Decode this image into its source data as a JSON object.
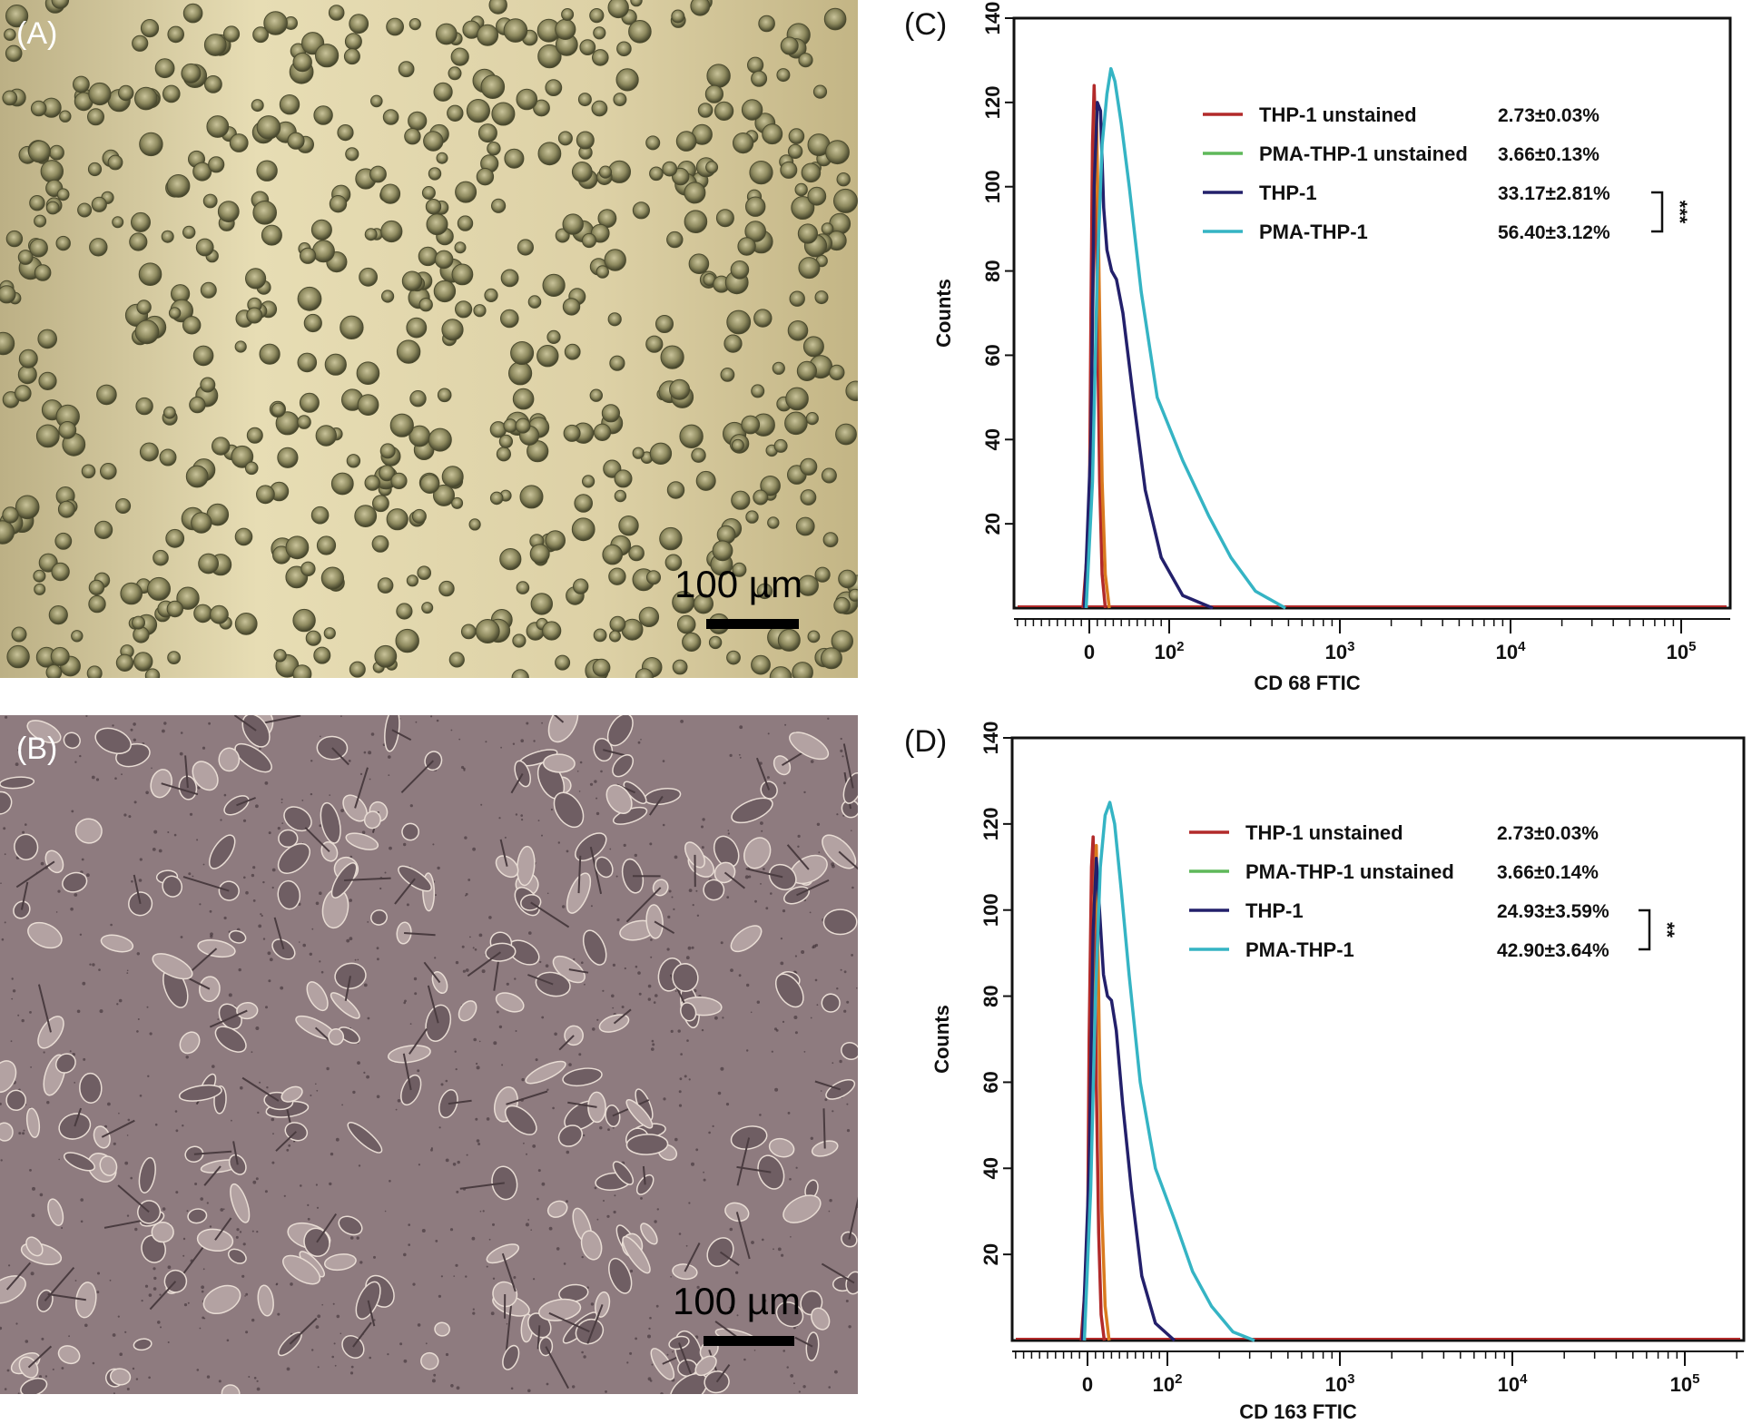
{
  "panels": {
    "A": {
      "label": "(A)",
      "scale_label": "100 µm"
    },
    "B": {
      "label": "(B)",
      "scale_label": "100 µm"
    },
    "C": {
      "label": "(C)"
    },
    "D": {
      "label": "(D)"
    }
  },
  "colors": {
    "thp1_unstained": "#b22a2a",
    "pma_thp1_unstained": "#5fb85a",
    "thp1": "#23206b",
    "pma_thp1": "#35b4c4",
    "orange_peak": "#d97a1e"
  },
  "chart_data": [
    {
      "id": "C",
      "type": "line",
      "xlabel": "CD 68    FTIC",
      "ylabel": "Counts",
      "ylim": [
        0,
        140
      ],
      "yticks": [
        20,
        40,
        60,
        80,
        100,
        120,
        140
      ],
      "xscale": "biexponential",
      "xticks": [
        {
          "value": 0,
          "label": "0",
          "exp": ""
        },
        {
          "value": 100,
          "label": "10",
          "exp": "2"
        },
        {
          "value": 1000,
          "label": "10",
          "exp": "3"
        },
        {
          "value": 10000,
          "label": "10",
          "exp": "4"
        },
        {
          "value": 100000,
          "label": "10",
          "exp": "5"
        }
      ],
      "legend": [
        {
          "name": "THP-1 unstained",
          "value": "2.73±0.03%",
          "color_key": "thp1_unstained"
        },
        {
          "name": "PMA-THP-1 unstained",
          "value": "3.66±0.13%",
          "color_key": "pma_thp1_unstained"
        },
        {
          "name": "THP-1",
          "value": "33.17±2.81%",
          "color_key": "thp1"
        },
        {
          "name": "PMA-THP-1",
          "value": "56.40±3.12%",
          "color_key": "pma_thp1"
        }
      ],
      "significance": "***",
      "series": [
        {
          "name": "THP-1 unstained",
          "color_key": "thp1_unstained",
          "points": [
            [
              -8,
              0
            ],
            [
              0,
              20
            ],
            [
              2,
              70
            ],
            [
              4,
              110
            ],
            [
              6,
              124
            ],
            [
              8,
              110
            ],
            [
              10,
              70
            ],
            [
              13,
              30
            ],
            [
              16,
              8
            ],
            [
              20,
              0
            ]
          ]
        },
        {
          "name": "PMA-THP-1 unstained",
          "color_key": "orange_peak",
          "points": [
            [
              -4,
              0
            ],
            [
              2,
              40
            ],
            [
              6,
              95
            ],
            [
              9,
              118
            ],
            [
              12,
              80
            ],
            [
              16,
              30
            ],
            [
              20,
              8
            ],
            [
              25,
              0
            ]
          ]
        },
        {
          "name": "THP-1",
          "color_key": "thp1",
          "points": [
            [
              -6,
              0
            ],
            [
              2,
              40
            ],
            [
              6,
              100
            ],
            [
              10,
              120
            ],
            [
              14,
              118
            ],
            [
              18,
              95
            ],
            [
              22,
              85
            ],
            [
              28,
              80
            ],
            [
              34,
              78
            ],
            [
              42,
              70
            ],
            [
              55,
              50
            ],
            [
              70,
              28
            ],
            [
              90,
              12
            ],
            [
              120,
              3
            ],
            [
              180,
              0
            ]
          ]
        },
        {
          "name": "PMA-THP-1",
          "color_key": "pma_thp1",
          "points": [
            [
              -4,
              0
            ],
            [
              4,
              30
            ],
            [
              10,
              80
            ],
            [
              16,
              110
            ],
            [
              22,
              122
            ],
            [
              27,
              128
            ],
            [
              32,
              125
            ],
            [
              40,
              115
            ],
            [
              50,
              100
            ],
            [
              65,
              75
            ],
            [
              85,
              50
            ],
            [
              120,
              35
            ],
            [
              170,
              22
            ],
            [
              230,
              12
            ],
            [
              320,
              4
            ],
            [
              480,
              0
            ]
          ]
        }
      ]
    },
    {
      "id": "D",
      "type": "line",
      "xlabel": "CD 163    FTIC",
      "ylabel": "Counts",
      "ylim": [
        0,
        140
      ],
      "yticks": [
        20,
        40,
        60,
        80,
        100,
        120,
        140
      ],
      "xscale": "biexponential",
      "xticks": [
        {
          "value": 0,
          "label": "0",
          "exp": ""
        },
        {
          "value": 100,
          "label": "10",
          "exp": "2"
        },
        {
          "value": 1000,
          "label": "10",
          "exp": "3"
        },
        {
          "value": 10000,
          "label": "10",
          "exp": "4"
        },
        {
          "value": 100000,
          "label": "10",
          "exp": "5"
        }
      ],
      "legend": [
        {
          "name": "THP-1 unstained",
          "value": "2.73±0.03%",
          "color_key": "thp1_unstained"
        },
        {
          "name": "PMA-THP-1 unstained",
          "value": "3.66±0.14%",
          "color_key": "pma_thp1_unstained"
        },
        {
          "name": "THP-1",
          "value": "24.93±3.59%",
          "color_key": "thp1"
        },
        {
          "name": "PMA-THP-1",
          "value": "42.90±3.64%",
          "color_key": "pma_thp1"
        }
      ],
      "significance": "**",
      "series": [
        {
          "name": "THP-1 unstained",
          "color_key": "thp1_unstained",
          "points": [
            [
              -8,
              0
            ],
            [
              0,
              20
            ],
            [
              2,
              70
            ],
            [
              5,
              110
            ],
            [
              7,
              117
            ],
            [
              9,
              100
            ],
            [
              11,
              60
            ],
            [
              14,
              25
            ],
            [
              17,
              6
            ],
            [
              21,
              0
            ]
          ]
        },
        {
          "name": "PMA-THP-1 unstained",
          "color_key": "orange_peak",
          "points": [
            [
              -4,
              0
            ],
            [
              3,
              40
            ],
            [
              8,
              100
            ],
            [
              11,
              115
            ],
            [
              14,
              80
            ],
            [
              18,
              30
            ],
            [
              22,
              8
            ],
            [
              27,
              0
            ]
          ]
        },
        {
          "name": "THP-1",
          "color_key": "thp1",
          "points": [
            [
              -6,
              0
            ],
            [
              2,
              40
            ],
            [
              7,
              95
            ],
            [
              11,
              112
            ],
            [
              15,
              100
            ],
            [
              20,
              85
            ],
            [
              25,
              80
            ],
            [
              30,
              79
            ],
            [
              36,
              72
            ],
            [
              44,
              55
            ],
            [
              55,
              35
            ],
            [
              68,
              15
            ],
            [
              85,
              4
            ],
            [
              110,
              0
            ]
          ]
        },
        {
          "name": "PMA-THP-1",
          "color_key": "pma_thp1",
          "points": [
            [
              -4,
              0
            ],
            [
              4,
              35
            ],
            [
              10,
              80
            ],
            [
              16,
              110
            ],
            [
              22,
              122
            ],
            [
              28,
              125
            ],
            [
              34,
              120
            ],
            [
              42,
              105
            ],
            [
              52,
              85
            ],
            [
              66,
              60
            ],
            [
              85,
              40
            ],
            [
              110,
              28
            ],
            [
              140,
              16
            ],
            [
              180,
              8
            ],
            [
              240,
              2
            ],
            [
              320,
              0
            ]
          ]
        }
      ]
    }
  ]
}
